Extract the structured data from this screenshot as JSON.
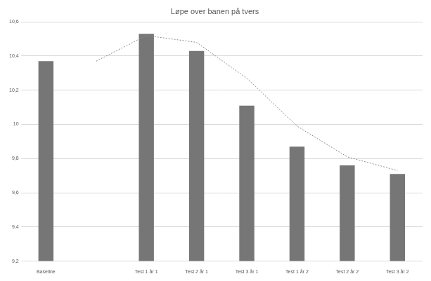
{
  "chart_data": {
    "type": "bar",
    "title": "Løpe over banen på tvers",
    "categories": [
      "Baseline",
      null,
      "Test 1 år 1",
      "Test 2 år 1",
      "Test 3 år 1",
      "Test 1 år 2",
      "Test 2 år 2",
      "Test 3 år 2"
    ],
    "series": [
      {
        "type": "bar",
        "color": "#767676",
        "values": [
          10.37,
          null,
          10.53,
          10.43,
          10.11,
          9.87,
          9.76,
          9.71
        ]
      },
      {
        "type": "line",
        "color": "#8c8c8c",
        "line_style": "dotted",
        "values": [
          null,
          10.37,
          10.52,
          10.48,
          10.27,
          9.99,
          9.81,
          9.73
        ]
      }
    ],
    "ylim": [
      9.2,
      10.6
    ],
    "yticks": [
      {
        "value": 9.2,
        "label": "9,2"
      },
      {
        "value": 9.4,
        "label": "9,4"
      },
      {
        "value": 9.6,
        "label": "9,6"
      },
      {
        "value": 9.8,
        "label": "9,8"
      },
      10,
      {
        "value": 10.2,
        "label": "10,2"
      },
      {
        "value": 10.4,
        "label": "10,4"
      },
      {
        "value": 10.6,
        "label": "10,6"
      }
    ],
    "grid": true
  }
}
